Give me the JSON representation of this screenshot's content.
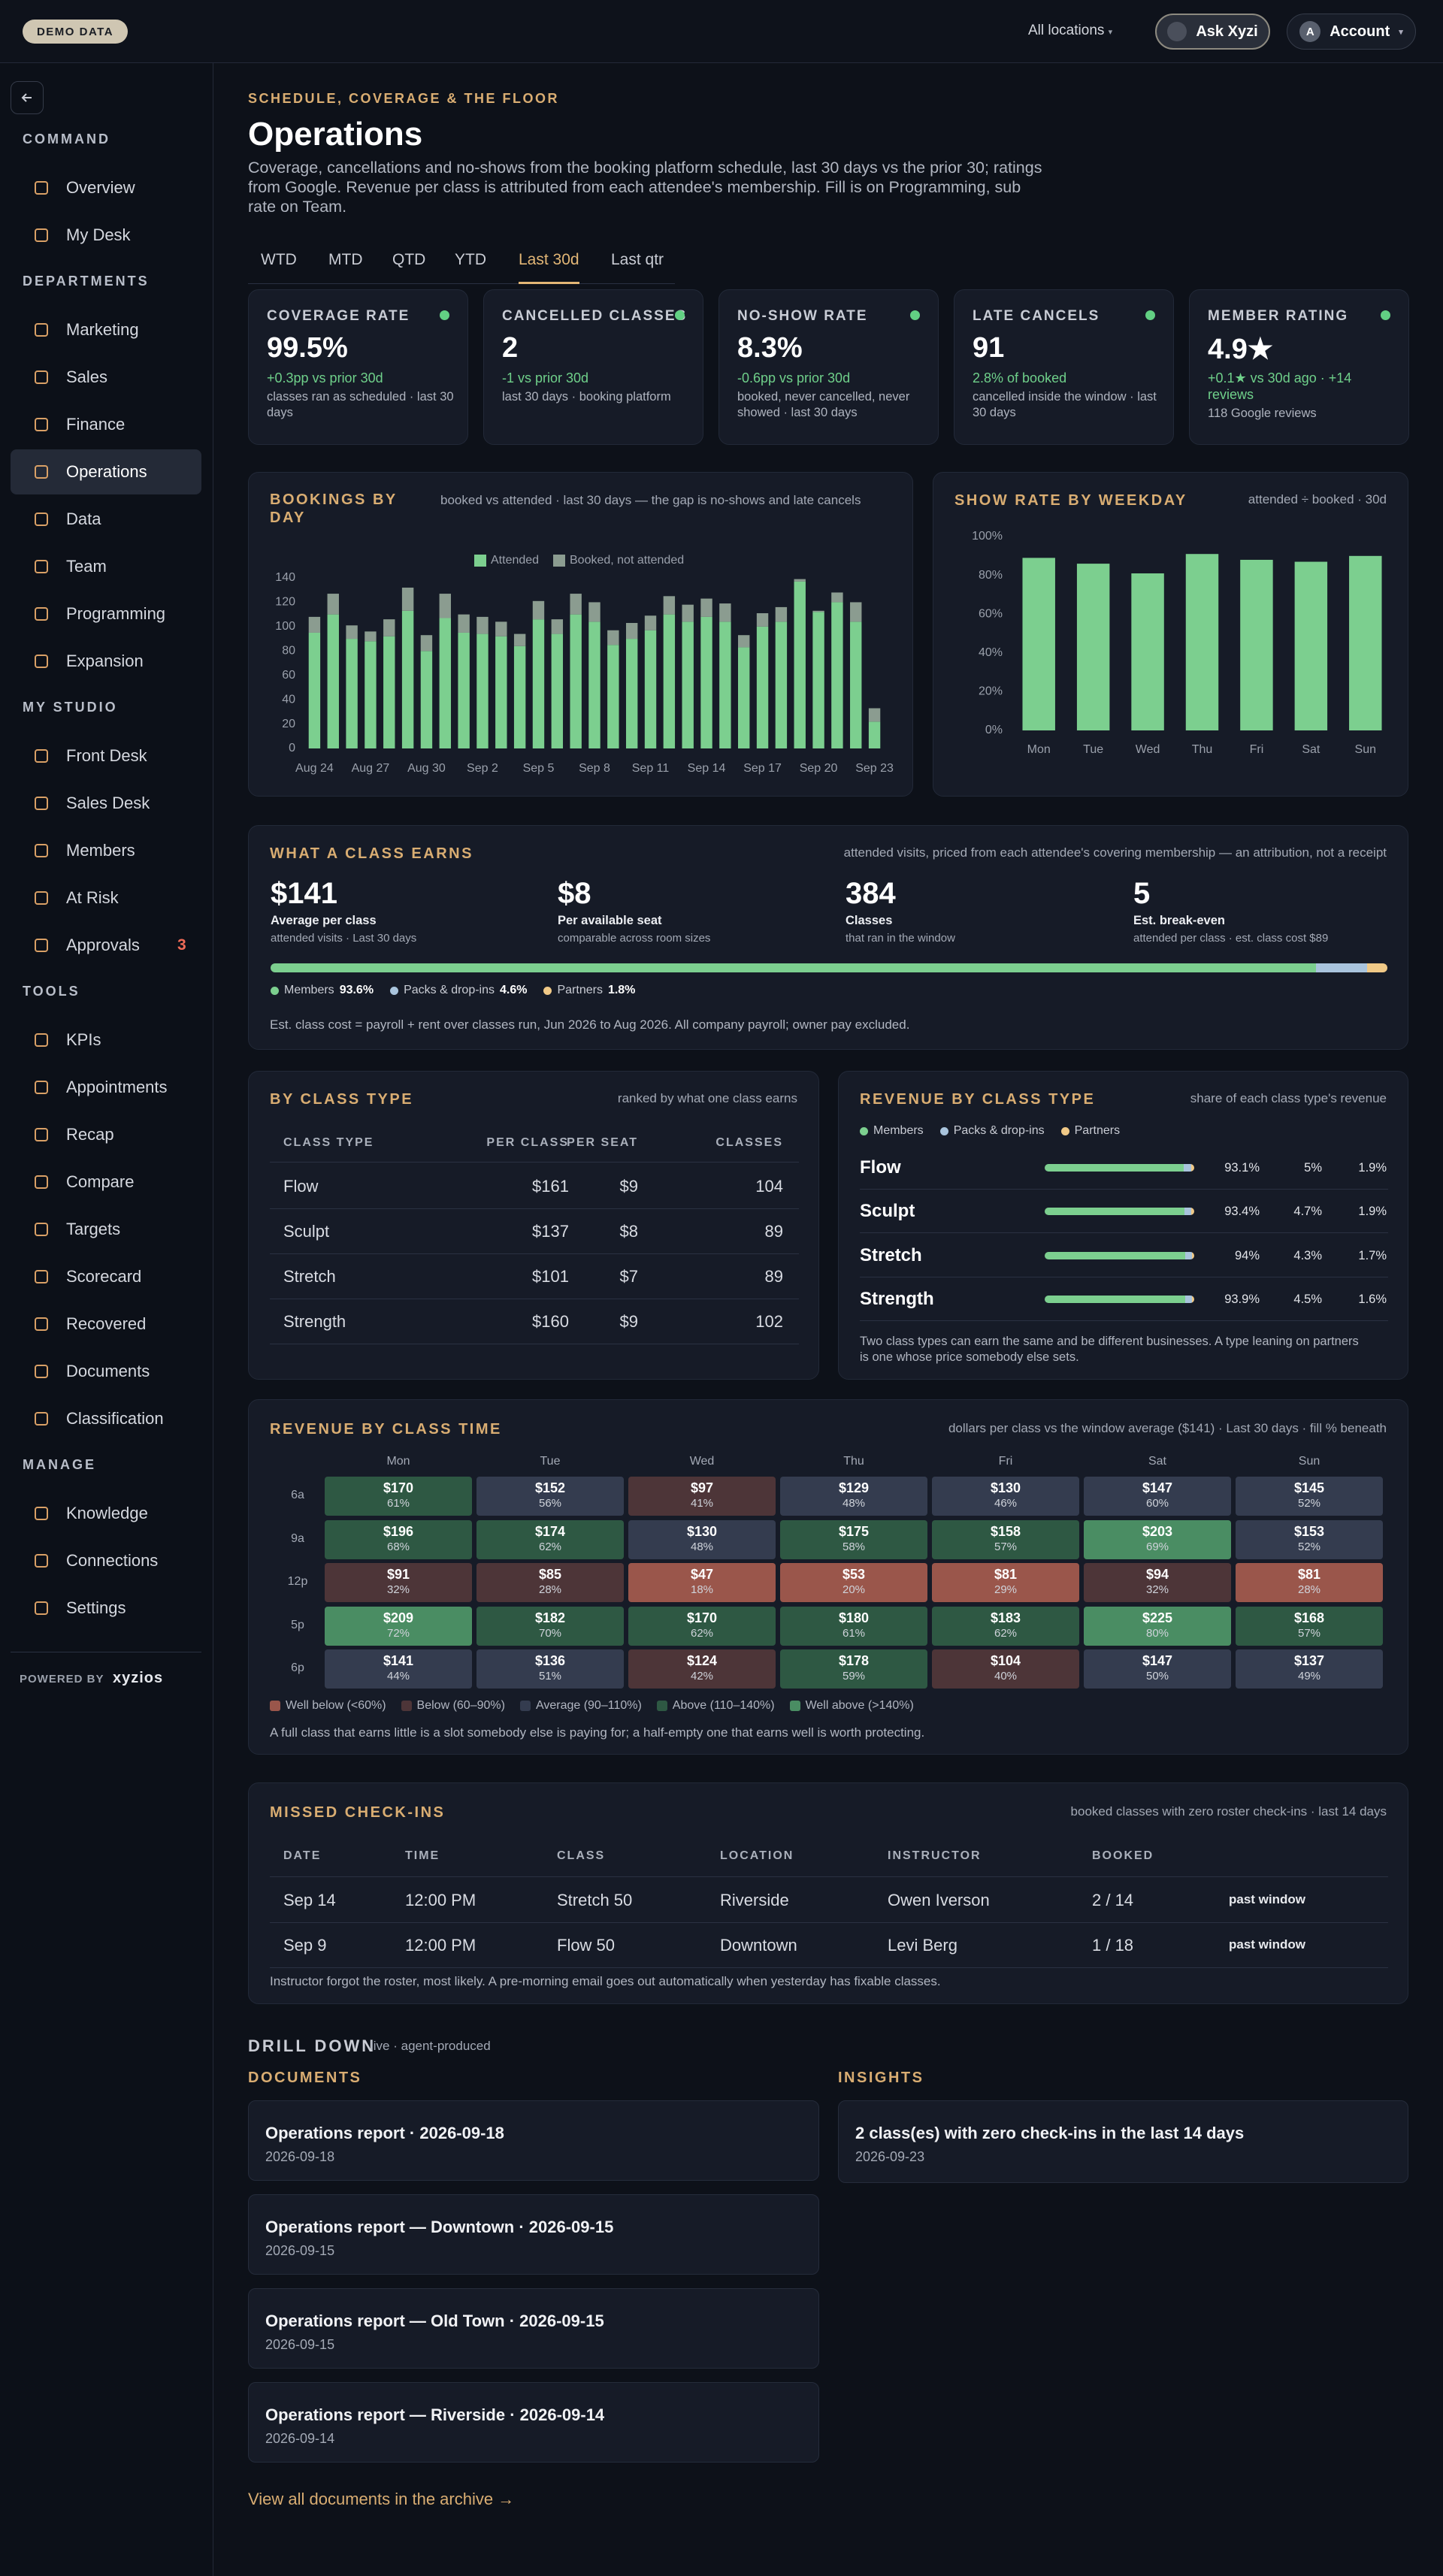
{
  "topbar": {
    "badge": "DEMO DATA",
    "location": "All locations",
    "ask": "Ask Xyzi",
    "avatar": "A",
    "account": "Account"
  },
  "sidebar": {
    "active_index": [
      1,
      3
    ],
    "sections": [
      {
        "title": "COMMAND",
        "items": [
          {
            "label": "Overview"
          },
          {
            "label": "My Desk"
          }
        ]
      },
      {
        "title": "DEPARTMENTS",
        "items": [
          {
            "label": "Marketing"
          },
          {
            "label": "Sales"
          },
          {
            "label": "Finance"
          },
          {
            "label": "Operations"
          },
          {
            "label": "Data"
          },
          {
            "label": "Team"
          },
          {
            "label": "Programming"
          },
          {
            "label": "Expansion"
          }
        ]
      },
      {
        "title": "MY STUDIO",
        "items": [
          {
            "label": "Front Desk"
          },
          {
            "label": "Sales Desk"
          },
          {
            "label": "Members"
          },
          {
            "label": "At Risk"
          },
          {
            "label": "Approvals",
            "badge": 3
          }
        ]
      },
      {
        "title": "TOOLS",
        "items": [
          {
            "label": "KPIs"
          },
          {
            "label": "Appointments"
          },
          {
            "label": "Recap"
          },
          {
            "label": "Compare"
          },
          {
            "label": "Targets"
          },
          {
            "label": "Scorecard"
          },
          {
            "label": "Recovered"
          },
          {
            "label": "Documents"
          },
          {
            "label": "Classification"
          }
        ]
      },
      {
        "title": "MANAGE",
        "items": [
          {
            "label": "Knowledge"
          },
          {
            "label": "Connections"
          },
          {
            "label": "Settings"
          }
        ]
      }
    ],
    "powered_by": "POWERED BY",
    "brand": "xyzios"
  },
  "header": {
    "eyebrow": "SCHEDULE, COVERAGE & THE FLOOR",
    "title": "Operations",
    "description": "Coverage, cancellations and no-shows from the booking platform schedule, last 30 days vs the prior 30; ratings from Google. Revenue per class is attributed from each attendee's membership. Fill is on Programming, sub rate on Team."
  },
  "tabs": {
    "items": [
      "WTD",
      "MTD",
      "QTD",
      "YTD",
      "Last 30d",
      "Last qtr"
    ],
    "active_index": 4
  },
  "kpis": [
    {
      "label": "COVERAGE RATE",
      "value": "99.5%",
      "delta": "+0.3pp vs prior 30d",
      "note": "classes ran as scheduled · last 30 days"
    },
    {
      "label": "CANCELLED CLASSES",
      "value": "2",
      "delta": "-1 vs prior 30d",
      "note": "last 30 days · booking platform"
    },
    {
      "label": "NO-SHOW RATE",
      "value": "8.3%",
      "delta": "-0.6pp vs prior 30d",
      "note": "booked, never cancelled, never showed · last 30 days"
    },
    {
      "label": "LATE CANCELS",
      "value": "91",
      "delta": "2.8% of booked",
      "note": "cancelled inside the window · last 30 days"
    },
    {
      "label": "MEMBER RATING",
      "value": "4.9★",
      "delta": "+0.1★ vs 30d ago · +14 reviews",
      "note": "118 Google reviews"
    }
  ],
  "chart_data": [
    {
      "type": "bar",
      "stacked": true,
      "title": "BOOKINGS BY DAY",
      "subtitle": "booked vs attended · last 30 days — the gap is no-shows and late cancels",
      "categories": [
        "Aug 24",
        null,
        null,
        "Aug 27",
        null,
        null,
        "Aug 30",
        null,
        null,
        "Sep 2",
        null,
        null,
        "Sep 5",
        null,
        null,
        "Sep 8",
        null,
        null,
        "Sep 11",
        null,
        null,
        "Sep 14",
        null,
        null,
        "Sep 17",
        null,
        null,
        "Sep 20",
        null,
        null,
        "Sep 23"
      ],
      "series": [
        {
          "name": "Attended",
          "color": "#7ccf8f",
          "values": [
            95,
            110,
            90,
            88,
            92,
            113,
            80,
            107,
            95,
            94,
            92,
            84,
            106,
            94,
            110,
            104,
            85,
            90,
            97,
            110,
            104,
            108,
            104,
            83,
            100,
            104,
            137,
            112,
            120,
            104,
            22
          ]
        },
        {
          "name": "Booked, not attended",
          "color": "#8b9c90",
          "values": [
            13,
            17,
            11,
            8,
            14,
            19,
            13,
            20,
            15,
            14,
            12,
            10,
            15,
            12,
            17,
            16,
            12,
            13,
            12,
            15,
            14,
            15,
            15,
            10,
            11,
            12,
            2,
            1,
            8,
            16,
            11
          ]
        }
      ],
      "ylim": [
        0,
        140
      ],
      "yticks": [
        0,
        20,
        40,
        60,
        80,
        100,
        120,
        140
      ],
      "grid": false
    },
    {
      "type": "bar",
      "title": "SHOW RATE BY WEEKDAY",
      "subtitle": "attended ÷ booked · 30d",
      "categories": [
        "Mon",
        "Tue",
        "Wed",
        "Thu",
        "Fri",
        "Sat",
        "Sun"
      ],
      "values": [
        89,
        86,
        81,
        91,
        88,
        87,
        90
      ],
      "color": "#7ccf8f",
      "ylim": [
        0,
        100
      ],
      "yticks": [
        {
          "value": 0,
          "label": "0%"
        },
        {
          "value": 20,
          "label": "20%"
        },
        {
          "value": 40,
          "label": "40%"
        },
        {
          "value": 60,
          "label": "60%"
        },
        {
          "value": 80,
          "label": "80%"
        },
        {
          "value": 100,
          "label": "100%"
        }
      ],
      "grid": false
    }
  ],
  "earnings": {
    "title": "WHAT A CLASS EARNS",
    "subtitle": "attended visits, priced from each attendee's covering membership — an attribution, not a receipt",
    "stats": [
      {
        "value": "$141",
        "label": "Average per class",
        "note": "attended visits · Last 30 days"
      },
      {
        "value": "$8",
        "label": "Per available seat",
        "note": "comparable across room sizes"
      },
      {
        "value": "384",
        "label": "Classes",
        "note": "that ran in the window"
      },
      {
        "value": "5",
        "label": "Est. break-even",
        "note": "attended per class · est. class cost $89"
      }
    ],
    "mix": {
      "names": [
        "Members",
        "Packs & drop-ins",
        "Partners"
      ],
      "colors": [
        "#7ccf8f",
        "#a9c4dd",
        "#f0c987"
      ],
      "values": [
        93.6,
        4.6,
        1.8
      ],
      "value_labels": [
        "93.6%",
        "4.6%",
        "1.8%"
      ]
    },
    "footnote": "Est. class cost = payroll + rent over classes run, Jun 2026 to Aug 2026. All company payroll; owner pay excluded."
  },
  "class_type": {
    "title": "BY CLASS TYPE",
    "subtitle": "ranked by what one class earns",
    "columns": [
      "CLASS TYPE",
      "PER CLASS",
      "PER SEAT",
      "CLASSES"
    ],
    "rows": [
      [
        "Flow",
        "$161",
        "$9",
        104
      ],
      [
        "Sculpt",
        "$137",
        "$8",
        89
      ],
      [
        "Stretch",
        "$101",
        "$7",
        89
      ],
      [
        "Strength",
        "$160",
        "$9",
        102
      ]
    ]
  },
  "revenue_mix": {
    "title": "REVENUE BY CLASS TYPE",
    "subtitle": "share of each class type's revenue",
    "legend": [
      "Members",
      "Packs & drop-ins",
      "Partners"
    ],
    "colors": [
      "#7ccf8f",
      "#a9c4dd",
      "#f0c987"
    ],
    "rows": [
      {
        "name": "Flow",
        "values": [
          93.1,
          5,
          1.9
        ],
        "value_labels": [
          "93.1%",
          "5%",
          "1.9%"
        ]
      },
      {
        "name": "Sculpt",
        "values": [
          93.4,
          4.7,
          1.9
        ],
        "value_labels": [
          "93.4%",
          "4.7%",
          "1.9%"
        ]
      },
      {
        "name": "Stretch",
        "values": [
          94,
          4.3,
          1.7
        ],
        "value_labels": [
          "94%",
          "4.3%",
          "1.7%"
        ]
      },
      {
        "name": "Strength",
        "values": [
          93.9,
          4.5,
          1.6
        ],
        "value_labels": [
          "93.9%",
          "4.5%",
          "1.6%"
        ]
      }
    ],
    "footnote": "Two class types can earn the same and be different businesses. A type leaning on partners is one whose price somebody else sets."
  },
  "heatmap": {
    "title": "REVENUE BY CLASS TIME",
    "subtitle": "dollars per class vs the window average ($141) · Last 30 days · fill % beneath",
    "columns": [
      "Mon",
      "Tue",
      "Wed",
      "Thu",
      "Fri",
      "Sat",
      "Sun"
    ],
    "rows": [
      {
        "label": "6a",
        "cells": [
          {
            "value": "$170",
            "fill": "61%",
            "level": 3
          },
          {
            "value": "$152",
            "fill": "56%",
            "level": 2
          },
          {
            "value": "$97",
            "fill": "41%",
            "level": 1
          },
          {
            "value": "$129",
            "fill": "48%",
            "level": 2
          },
          {
            "value": "$130",
            "fill": "46%",
            "level": 2
          },
          {
            "value": "$147",
            "fill": "60%",
            "level": 2
          },
          {
            "value": "$145",
            "fill": "52%",
            "level": 2
          }
        ]
      },
      {
        "label": "9a",
        "cells": [
          {
            "value": "$196",
            "fill": "68%",
            "level": 3
          },
          {
            "value": "$174",
            "fill": "62%",
            "level": 3
          },
          {
            "value": "$130",
            "fill": "48%",
            "level": 2
          },
          {
            "value": "$175",
            "fill": "58%",
            "level": 3
          },
          {
            "value": "$158",
            "fill": "57%",
            "level": 3
          },
          {
            "value": "$203",
            "fill": "69%",
            "level": 4
          },
          {
            "value": "$153",
            "fill": "52%",
            "level": 2
          }
        ]
      },
      {
        "label": "12p",
        "cells": [
          {
            "value": "$91",
            "fill": "32%",
            "level": 1
          },
          {
            "value": "$85",
            "fill": "28%",
            "level": 1
          },
          {
            "value": "$47",
            "fill": "18%",
            "level": 0
          },
          {
            "value": "$53",
            "fill": "20%",
            "level": 0
          },
          {
            "value": "$81",
            "fill": "29%",
            "level": 0
          },
          {
            "value": "$94",
            "fill": "32%",
            "level": 1
          },
          {
            "value": "$81",
            "fill": "28%",
            "level": 0
          }
        ]
      },
      {
        "label": "5p",
        "cells": [
          {
            "value": "$209",
            "fill": "72%",
            "level": 4
          },
          {
            "value": "$182",
            "fill": "70%",
            "level": 3
          },
          {
            "value": "$170",
            "fill": "62%",
            "level": 3
          },
          {
            "value": "$180",
            "fill": "61%",
            "level": 3
          },
          {
            "value": "$183",
            "fill": "62%",
            "level": 3
          },
          {
            "value": "$225",
            "fill": "80%",
            "level": 4
          },
          {
            "value": "$168",
            "fill": "57%",
            "level": 3
          }
        ]
      },
      {
        "label": "6p",
        "cells": [
          {
            "value": "$141",
            "fill": "44%",
            "level": 2
          },
          {
            "value": "$136",
            "fill": "51%",
            "level": 2
          },
          {
            "value": "$124",
            "fill": "42%",
            "level": 1
          },
          {
            "value": "$178",
            "fill": "59%",
            "level": 3
          },
          {
            "value": "$104",
            "fill": "40%",
            "level": 1
          },
          {
            "value": "$147",
            "fill": "50%",
            "level": 2
          },
          {
            "value": "$137",
            "fill": "49%",
            "level": 2
          }
        ]
      }
    ],
    "legend": [
      {
        "label": "Well below (<60%)",
        "color": "#9a564b"
      },
      {
        "label": "Below (60–90%)",
        "color": "#4d3538"
      },
      {
        "label": "Average (90–110%)",
        "color": "#343c4f"
      },
      {
        "label": "Above (110–140%)",
        "color": "#2e5843"
      },
      {
        "label": "Well above (>140%)",
        "color": "#4a8d63"
      }
    ],
    "footnote": "A full class that earns little is a slot somebody else is paying for; a half-empty one that earns well is worth protecting."
  },
  "missed": {
    "title": "MISSED CHECK-INS",
    "subtitle": "booked classes with zero roster check-ins · last 14 days",
    "columns": [
      "DATE",
      "TIME",
      "CLASS",
      "LOCATION",
      "INSTRUCTOR",
      "BOOKED"
    ],
    "rows": [
      [
        "Sep 14",
        "12:00 PM",
        "Stretch 50",
        "Riverside",
        "Owen Iverson",
        "2 / 14",
        "past window"
      ],
      [
        "Sep 9",
        "12:00 PM",
        "Flow 50",
        "Downtown",
        "Levi Berg",
        "1 / 18",
        "past window"
      ]
    ],
    "footnote": "Instructor forgot the roster, most likely. A pre-morning email goes out automatically when yesterday has fixable classes."
  },
  "drill": {
    "title": "DRILL DOWN",
    "tag": "live · agent-produced",
    "documents": {
      "title": "DOCUMENTS",
      "items": [
        {
          "title": "Operations report · 2026-09-18",
          "date": "2026-09-18"
        },
        {
          "title": "Operations report — Downtown · 2026-09-15",
          "date": "2026-09-15"
        },
        {
          "title": "Operations report — Old Town · 2026-09-15",
          "date": "2026-09-15"
        },
        {
          "title": "Operations report — Riverside · 2026-09-14",
          "date": "2026-09-14"
        }
      ]
    },
    "insights": {
      "title": "INSIGHTS",
      "items": [
        {
          "title": "2 class(es) with zero check-ins in the last 14 days",
          "date": "2026-09-23"
        }
      ]
    },
    "link": "View all documents in the archive →"
  }
}
